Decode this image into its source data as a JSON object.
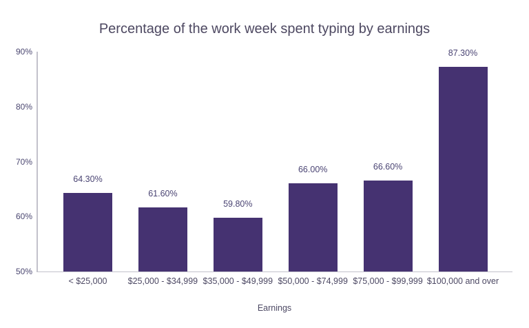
{
  "title": "Percentage of the work week spent typing by earnings",
  "colors": {
    "bar": "#453271",
    "title_text": "#4d4861",
    "tick_text": "#4a4670",
    "value_text": "#4a4473",
    "category_text": "#4c4863",
    "axis_line": "#c2c1cb",
    "background": "#ffffff"
  },
  "chart_data": {
    "type": "bar",
    "title": "Percentage of the work week spent typing by earnings",
    "categories": [
      "< $25,000",
      "$25,000 - $34,999",
      "$35,000 - $49,999",
      "$50,000 - $74,999",
      "$75,000 - $99,999",
      "$100,000 and over"
    ],
    "values": [
      64.3,
      61.6,
      59.8,
      66.0,
      66.6,
      87.3
    ],
    "value_labels": [
      "64.30%",
      "61.60%",
      "59.80%",
      "66.00%",
      "66.60%",
      "87.30%"
    ],
    "xlabel": "Earnings",
    "ylabel": "",
    "ylim": [
      50,
      90
    ],
    "yticks": [
      "50%",
      "60%",
      "70%",
      "80%",
      "90%"
    ],
    "ytick_values": [
      50,
      60,
      70,
      80,
      90
    ],
    "grid": false,
    "legend": false,
    "data_labels": true
  }
}
